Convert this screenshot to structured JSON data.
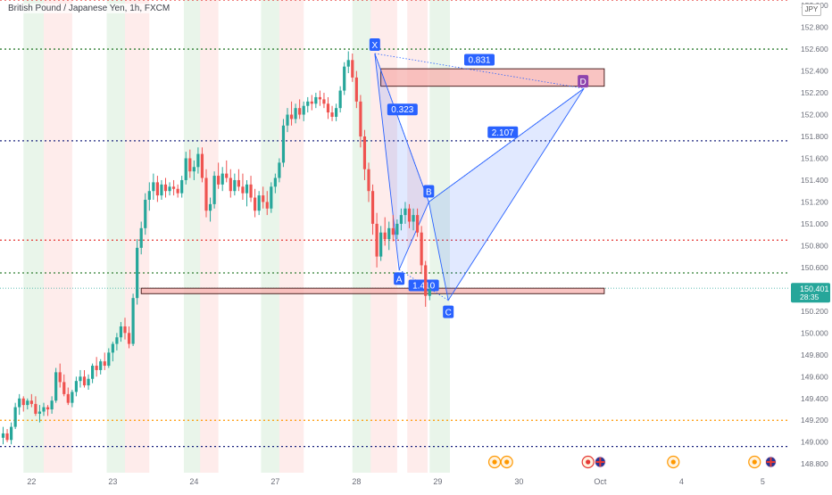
{
  "chart_data": {
    "type": "candlestick",
    "title": "British Pound / Japanese Yen, 1h, FXCM",
    "currency": "JPY",
    "x_tick_labels": [
      "22",
      "23",
      "24",
      "27",
      "28",
      "29",
      "30",
      "Oct",
      "4",
      "5"
    ],
    "y_tick_labels": [
      "148.800",
      "149.000",
      "149.200",
      "149.400",
      "149.600",
      "149.800",
      "150.000",
      "150.200",
      "150.600",
      "150.800",
      "151.000",
      "151.200",
      "151.400",
      "151.600",
      "151.800",
      "152.000",
      "152.200",
      "152.400",
      "152.600",
      "152.800",
      "153.000"
    ],
    "ylim": [
      148.72,
      153.05
    ],
    "last_price": {
      "value": "150.401",
      "countdown": "28:35",
      "price": 150.401
    },
    "candles": [
      [
        149.04,
        149.14,
        148.98,
        149.08
      ],
      [
        149.08,
        149.12,
        149.0,
        149.02
      ],
      [
        149.02,
        149.18,
        148.98,
        149.14
      ],
      [
        149.14,
        149.36,
        149.12,
        149.32
      ],
      [
        149.32,
        149.44,
        149.25,
        149.4
      ],
      [
        149.4,
        149.42,
        149.28,
        149.34
      ],
      [
        149.34,
        149.4,
        149.3,
        149.38
      ],
      [
        149.38,
        149.44,
        149.32,
        149.35
      ],
      [
        149.35,
        149.42,
        149.24,
        149.26
      ],
      [
        149.26,
        149.34,
        149.18,
        149.28
      ],
      [
        149.28,
        149.36,
        149.24,
        149.32
      ],
      [
        149.32,
        149.34,
        149.24,
        149.3
      ],
      [
        149.3,
        149.42,
        149.26,
        149.38
      ],
      [
        149.38,
        149.68,
        149.36,
        149.64
      ],
      [
        149.64,
        149.72,
        149.5,
        149.55
      ],
      [
        149.55,
        149.62,
        149.42,
        149.44
      ],
      [
        149.44,
        149.5,
        149.34,
        149.36
      ],
      [
        149.36,
        149.48,
        149.32,
        149.46
      ],
      [
        149.46,
        149.6,
        149.42,
        149.56
      ],
      [
        149.56,
        149.66,
        149.5,
        149.6
      ],
      [
        149.6,
        149.66,
        149.5,
        149.52
      ],
      [
        149.52,
        149.62,
        149.48,
        149.58
      ],
      [
        149.58,
        149.72,
        149.54,
        149.7
      ],
      [
        149.7,
        149.78,
        149.6,
        149.66
      ],
      [
        149.66,
        149.76,
        149.62,
        149.74
      ],
      [
        149.74,
        149.82,
        149.66,
        149.7
      ],
      [
        149.7,
        149.86,
        149.68,
        149.82
      ],
      [
        149.82,
        149.92,
        149.74,
        149.9
      ],
      [
        149.9,
        150.0,
        149.84,
        149.96
      ],
      [
        149.96,
        150.1,
        149.92,
        150.06
      ],
      [
        150.06,
        150.14,
        149.94,
        150.0
      ],
      [
        150.0,
        150.06,
        149.86,
        149.9
      ],
      [
        149.9,
        150.36,
        149.88,
        150.32
      ],
      [
        150.32,
        150.86,
        150.26,
        150.78
      ],
      [
        150.78,
        151.02,
        150.72,
        150.96
      ],
      [
        150.96,
        151.28,
        150.9,
        151.22
      ],
      [
        151.22,
        151.38,
        151.12,
        151.3
      ],
      [
        151.3,
        151.46,
        151.22,
        151.38
      ],
      [
        151.38,
        151.44,
        151.2,
        151.26
      ],
      [
        151.26,
        151.4,
        151.22,
        151.36
      ],
      [
        151.36,
        151.42,
        151.24,
        151.3
      ],
      [
        151.3,
        151.38,
        151.26,
        151.34
      ],
      [
        151.34,
        151.4,
        151.26,
        151.32
      ],
      [
        151.32,
        151.36,
        151.24,
        151.28
      ],
      [
        151.28,
        151.44,
        151.24,
        151.4
      ],
      [
        151.4,
        151.66,
        151.36,
        151.6
      ],
      [
        151.6,
        151.68,
        151.42,
        151.48
      ],
      [
        151.48,
        151.58,
        151.4,
        151.52
      ],
      [
        151.52,
        151.7,
        151.46,
        151.64
      ],
      [
        151.64,
        151.7,
        151.38,
        151.42
      ],
      [
        151.42,
        151.5,
        151.06,
        151.12
      ],
      [
        151.12,
        151.24,
        151.02,
        151.18
      ],
      [
        151.18,
        151.48,
        151.14,
        151.44
      ],
      [
        151.44,
        151.56,
        151.32,
        151.36
      ],
      [
        151.36,
        151.52,
        151.3,
        151.46
      ],
      [
        151.46,
        151.58,
        151.38,
        151.42
      ],
      [
        151.42,
        151.5,
        151.24,
        151.3
      ],
      [
        151.3,
        151.46,
        151.26,
        151.4
      ],
      [
        151.4,
        151.5,
        151.3,
        151.34
      ],
      [
        151.34,
        151.46,
        151.22,
        151.28
      ],
      [
        151.28,
        151.4,
        151.16,
        151.36
      ],
      [
        151.36,
        151.44,
        151.2,
        151.24
      ],
      [
        151.24,
        151.32,
        151.06,
        151.12
      ],
      [
        151.12,
        151.3,
        151.08,
        151.26
      ],
      [
        151.26,
        151.34,
        151.14,
        151.2
      ],
      [
        151.2,
        151.3,
        151.08,
        151.14
      ],
      [
        151.14,
        151.38,
        151.1,
        151.34
      ],
      [
        151.34,
        151.46,
        151.28,
        151.42
      ],
      [
        151.42,
        151.6,
        151.38,
        151.56
      ],
      [
        151.56,
        151.96,
        151.52,
        151.9
      ],
      [
        151.9,
        152.06,
        151.84,
        152.0
      ],
      [
        152.0,
        152.12,
        151.9,
        151.96
      ],
      [
        151.96,
        152.1,
        151.92,
        152.06
      ],
      [
        152.06,
        152.14,
        151.96,
        152.0
      ],
      [
        152.0,
        152.12,
        151.94,
        152.08
      ],
      [
        152.08,
        152.16,
        152.02,
        152.12
      ],
      [
        152.12,
        152.18,
        152.04,
        152.1
      ],
      [
        152.1,
        152.2,
        152.06,
        152.16
      ],
      [
        152.16,
        152.22,
        152.08,
        152.14
      ],
      [
        152.14,
        152.2,
        152.06,
        152.1
      ],
      [
        152.1,
        152.16,
        151.96,
        152.02
      ],
      [
        152.02,
        152.08,
        151.94,
        151.98
      ],
      [
        151.98,
        152.1,
        151.94,
        152.06
      ],
      [
        152.06,
        152.26,
        152.02,
        152.22
      ],
      [
        152.22,
        152.48,
        152.18,
        152.44
      ],
      [
        152.44,
        152.58,
        152.38,
        152.5
      ],
      [
        152.5,
        152.56,
        152.3,
        152.34
      ],
      [
        152.34,
        152.4,
        152.06,
        152.12
      ],
      [
        152.12,
        152.18,
        151.7,
        151.8
      ],
      [
        151.8,
        151.86,
        151.4,
        151.5
      ],
      [
        151.5,
        151.56,
        151.2,
        151.3
      ],
      [
        151.3,
        151.36,
        150.9,
        151.0
      ],
      [
        151.0,
        151.1,
        150.6,
        150.7
      ],
      [
        150.7,
        150.98,
        150.66,
        150.92
      ],
      [
        150.92,
        151.06,
        150.8,
        150.86
      ],
      [
        150.86,
        151.02,
        150.76,
        150.96
      ],
      [
        150.96,
        151.08,
        150.84,
        150.9
      ],
      [
        150.9,
        151.04,
        150.86,
        151.0
      ],
      [
        151.0,
        151.14,
        150.94,
        151.08
      ],
      [
        151.08,
        151.2,
        151.0,
        151.14
      ],
      [
        151.14,
        151.18,
        150.96,
        151.02
      ],
      [
        151.02,
        151.14,
        150.94,
        151.08
      ],
      [
        151.08,
        151.14,
        150.88,
        150.92
      ],
      [
        150.92,
        150.98,
        150.54,
        150.62
      ],
      [
        150.62,
        150.66,
        150.24,
        150.34
      ],
      [
        150.34,
        150.44,
        150.3,
        150.4
      ]
    ],
    "pattern": {
      "name": "XABCD",
      "points": [
        {
          "label": "X",
          "t": 91.5,
          "price": 152.56
        },
        {
          "label": "A",
          "t": 97.5,
          "price": 150.58
        },
        {
          "label": "B",
          "t": 104.8,
          "price": 151.2
        },
        {
          "label": "C",
          "t": 109.6,
          "price": 150.3
        },
        {
          "label": "D",
          "t": 143.0,
          "price": 152.24
        }
      ],
      "ratios": [
        "0.323",
        "2.107",
        "0.831",
        "1.410"
      ]
    },
    "horizontal_levels": [
      {
        "price": 153.05,
        "color": "#e53935"
      },
      {
        "price": 152.6,
        "color": "#2e7d32"
      },
      {
        "price": 151.76,
        "color": "#1a237e"
      },
      {
        "price": 150.85,
        "color": "#e53935"
      },
      {
        "price": 150.55,
        "color": "#2e7d32"
      },
      {
        "price": 150.41,
        "color": "#26a69a"
      },
      {
        "price": 149.2,
        "color": "#ff9800"
      },
      {
        "price": 148.96,
        "color": "#1a237e"
      }
    ],
    "zones": [
      {
        "kind": "reversal",
        "t0": 93,
        "t1": 148,
        "p0": 152.26,
        "p1": 152.42
      },
      {
        "kind": "support",
        "t0": 34,
        "t1": 148,
        "p0": 150.36,
        "p1": 150.41
      }
    ],
    "sessions": [
      {
        "t0": 5,
        "t1": 10,
        "kind": "buy"
      },
      {
        "t0": 10,
        "t1": 17,
        "kind": "sell"
      },
      {
        "t0": 25.5,
        "t1": 30,
        "kind": "buy"
      },
      {
        "t0": 30,
        "t1": 36,
        "kind": "sell"
      },
      {
        "t0": 44.5,
        "t1": 48.5,
        "kind": "buy"
      },
      {
        "t0": 48.5,
        "t1": 53,
        "kind": "sell"
      },
      {
        "t0": 63.5,
        "t1": 68,
        "kind": "buy"
      },
      {
        "t0": 68,
        "t1": 74,
        "kind": "sell"
      },
      {
        "t0": 86,
        "t1": 90.5,
        "kind": "buy"
      },
      {
        "t0": 90.5,
        "t1": 97,
        "kind": "sell"
      },
      {
        "t0": 99.5,
        "t1": 104.5,
        "kind": "sell"
      },
      {
        "t0": 105,
        "t1": 110,
        "kind": "buy"
      }
    ],
    "event_icons": [
      {
        "t": 121,
        "kind": "orange"
      },
      {
        "t": 124,
        "kind": "orange"
      },
      {
        "t": 144,
        "kind": "red"
      },
      {
        "t": 147,
        "kind": "uk"
      },
      {
        "t": 165,
        "kind": "orange"
      },
      {
        "t": 185,
        "kind": "orange"
      },
      {
        "t": 189,
        "kind": "uk"
      }
    ],
    "colors": {
      "up": "#26a69a",
      "down": "#ef5350",
      "pattern": "#2962ff",
      "zone": "#f7b0ad",
      "label_bg": "#2962ff"
    }
  }
}
